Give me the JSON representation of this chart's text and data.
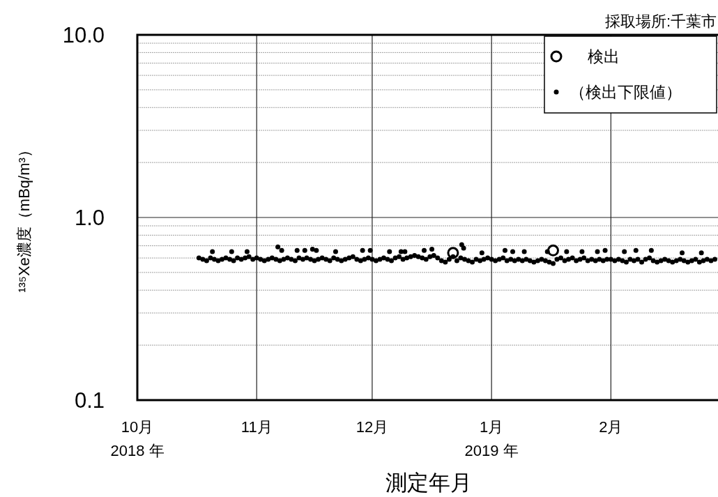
{
  "chart_data": {
    "type": "scatter",
    "ylabel": "¹³⁵Xe濃度（mBq/m³）",
    "xlabel": "測定年月",
    "annotations": [
      "採取場所:千葉市"
    ],
    "log": "y",
    "grid": true,
    "legend": "top right",
    "ylim": [
      0.1,
      10
    ],
    "yticks": [
      0.1,
      {
        "value": 1,
        "label": "1.0"
      },
      {
        "value": 10,
        "label": "10.0"
      }
    ],
    "xlim": [
      "2018-10-01",
      "2019-03-01"
    ],
    "xticks": [
      {
        "value": "2018-10-01",
        "label": "10月\n2018 年"
      },
      {
        "value": "2018-11-01",
        "label": "11月"
      },
      {
        "value": "2018-12-01",
        "label": "12月"
      },
      {
        "value": "2019-01-01",
        "label": "1月\n2019 年"
      },
      {
        "value": "2019-02-01",
        "label": "2月"
      }
    ],
    "series": [
      {
        "name": "検出",
        "color": "#000000",
        "marker": "circle",
        "x": [
          "2018-12-22",
          "2019-01-17"
        ],
        "values": [
          0.64,
          0.66
        ]
      },
      {
        "name": "（検出下限値）",
        "color": "#000000",
        "marker": "circle",
        "x": [
          "2018-10-17",
          "2018-10-18",
          "2018-10-19",
          "2018-10-20",
          "2018-10-21",
          "2018-10-22",
          "2018-10-23",
          "2018-10-24",
          "2018-10-25",
          "2018-10-26",
          "2018-10-27",
          "2018-10-28",
          "2018-10-29",
          "2018-10-30",
          "2018-10-31",
          "2018-11-01",
          "2018-11-02",
          "2018-11-03",
          "2018-11-04",
          "2018-11-05",
          "2018-11-06",
          "2018-11-07",
          "2018-11-08",
          "2018-11-09",
          "2018-11-10",
          "2018-11-11",
          "2018-11-12",
          "2018-11-13",
          "2018-11-14",
          "2018-11-15",
          "2018-11-16",
          "2018-11-17",
          "2018-11-18",
          "2018-11-19",
          "2018-11-20",
          "2018-11-21",
          "2018-11-22",
          "2018-11-23",
          "2018-11-24",
          "2018-11-25",
          "2018-11-26",
          "2018-11-27",
          "2018-11-28",
          "2018-11-29",
          "2018-11-30",
          "2018-12-01",
          "2018-12-02",
          "2018-12-03",
          "2018-12-04",
          "2018-12-05",
          "2018-12-06",
          "2018-12-07",
          "2018-12-08",
          "2018-12-09",
          "2018-12-10",
          "2018-12-11",
          "2018-12-12",
          "2018-12-13",
          "2018-12-14",
          "2018-12-15",
          "2018-12-16",
          "2018-12-17",
          "2018-12-18",
          "2018-12-19",
          "2018-12-20",
          "2018-12-21",
          "2018-12-22",
          "2018-12-23",
          "2018-12-24",
          "2018-12-25",
          "2018-12-26",
          "2018-12-27",
          "2018-12-28",
          "2018-12-29",
          "2018-12-30",
          "2018-12-31",
          "2019-01-01",
          "2019-01-02",
          "2019-01-03",
          "2019-01-04",
          "2019-01-05",
          "2019-01-06",
          "2019-01-07",
          "2019-01-08",
          "2019-01-09",
          "2019-01-10",
          "2019-01-11",
          "2019-01-12",
          "2019-01-13",
          "2019-01-14",
          "2019-01-15",
          "2019-01-16",
          "2019-01-17",
          "2019-01-18",
          "2019-01-19",
          "2019-01-20",
          "2019-01-21",
          "2019-01-22",
          "2019-01-23",
          "2019-01-24",
          "2019-01-25",
          "2019-01-26",
          "2019-01-27",
          "2019-01-28",
          "2019-01-29",
          "2019-01-30",
          "2019-01-31",
          "2019-02-01",
          "2019-02-02",
          "2019-02-03",
          "2019-02-04",
          "2019-02-05",
          "2019-02-06",
          "2019-02-07",
          "2019-02-08",
          "2019-02-09",
          "2019-02-10",
          "2019-02-11",
          "2019-02-12",
          "2019-02-13",
          "2019-02-14",
          "2019-02-15",
          "2019-02-16",
          "2019-02-17",
          "2019-02-18",
          "2019-02-19",
          "2019-02-20",
          "2019-02-21",
          "2019-02-22",
          "2019-02-23",
          "2019-02-24",
          "2019-02-25",
          "2019-02-26",
          "2019-02-27",
          "2019-02-28",
          "2018-10-20T12:00",
          "2018-10-25T12:00",
          "2018-10-29T12:00",
          "2018-11-06T12:00",
          "2018-11-07T12:00",
          "2018-11-11T12:00",
          "2018-11-13T12:00",
          "2018-11-15T12:00",
          "2018-11-16T12:00",
          "2018-11-21T12:00",
          "2018-11-28T12:00",
          "2018-11-30T12:00",
          "2018-12-05T12:00",
          "2018-12-08T12:00",
          "2018-12-09T12:00",
          "2018-12-14T12:00",
          "2018-12-16T12:00",
          "2018-12-24T06:00",
          "2018-12-24T18:00",
          "2018-12-29T12:00",
          "2019-01-04T12:00",
          "2019-01-06T12:00",
          "2019-01-09T12:00",
          "2019-01-15T12:00",
          "2019-01-20T12:00",
          "2019-01-24T12:00",
          "2019-01-28T12:00",
          "2019-01-30T12:00",
          "2019-02-04T12:00",
          "2019-02-07T12:00",
          "2019-02-11T12:00",
          "2019-02-19T12:00",
          "2019-02-24T12:00"
        ],
        "values": [
          0.6,
          0.59,
          0.58,
          0.6,
          0.59,
          0.58,
          0.59,
          0.6,
          0.59,
          0.58,
          0.6,
          0.59,
          0.6,
          0.61,
          0.59,
          0.6,
          0.59,
          0.58,
          0.59,
          0.6,
          0.59,
          0.58,
          0.59,
          0.6,
          0.59,
          0.58,
          0.6,
          0.59,
          0.6,
          0.59,
          0.58,
          0.59,
          0.6,
          0.59,
          0.58,
          0.6,
          0.59,
          0.58,
          0.59,
          0.6,
          0.61,
          0.59,
          0.58,
          0.59,
          0.6,
          0.59,
          0.58,
          0.59,
          0.6,
          0.59,
          0.58,
          0.6,
          0.61,
          0.59,
          0.6,
          0.61,
          0.62,
          0.61,
          0.6,
          0.59,
          0.61,
          0.62,
          0.6,
          0.58,
          0.57,
          0.59,
          0.61,
          0.58,
          0.6,
          0.59,
          0.58,
          0.57,
          0.59,
          0.58,
          0.59,
          0.6,
          0.59,
          0.58,
          0.59,
          0.6,
          0.58,
          0.59,
          0.58,
          0.59,
          0.58,
          0.59,
          0.58,
          0.57,
          0.58,
          0.59,
          0.58,
          0.57,
          0.56,
          0.59,
          0.6,
          0.58,
          0.59,
          0.6,
          0.58,
          0.59,
          0.6,
          0.58,
          0.59,
          0.58,
          0.59,
          0.58,
          0.59,
          0.59,
          0.58,
          0.59,
          0.58,
          0.57,
          0.59,
          0.58,
          0.59,
          0.57,
          0.59,
          0.6,
          0.58,
          0.57,
          0.58,
          0.59,
          0.58,
          0.57,
          0.58,
          0.59,
          0.58,
          0.57,
          0.58,
          0.59,
          0.57,
          0.58,
          0.59,
          0.58,
          0.59,
          0.65,
          0.65,
          0.65,
          0.69,
          0.66,
          0.66,
          0.66,
          0.67,
          0.66,
          0.65,
          0.66,
          0.66,
          0.65,
          0.65,
          0.65,
          0.66,
          0.67,
          0.71,
          0.68,
          0.64,
          0.66,
          0.65,
          0.65,
          0.65,
          0.65,
          0.65,
          0.65,
          0.66,
          0.65,
          0.66,
          0.66,
          0.64,
          0.64
        ]
      }
    ]
  }
}
